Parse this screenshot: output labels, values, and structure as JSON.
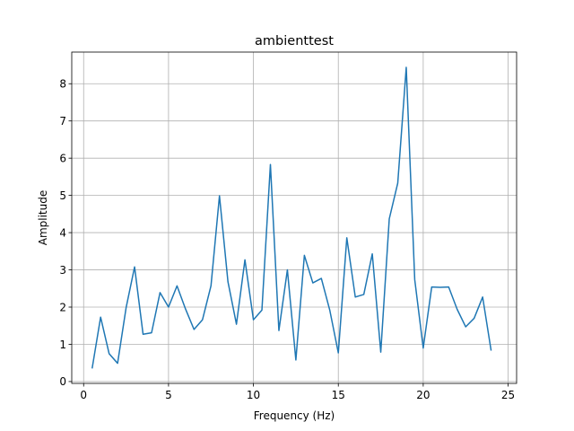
{
  "chart_data": {
    "type": "line",
    "title": "ambienttest",
    "xlabel": "Frequency (Hz)",
    "ylabel": "Amplitude",
    "xlim": [
      -0.7,
      25.5
    ],
    "ylim": [
      -0.05,
      8.85
    ],
    "xticks": [
      0,
      5,
      10,
      15,
      20,
      25
    ],
    "yticks": [
      0,
      1,
      2,
      3,
      4,
      5,
      6,
      7,
      8
    ],
    "grid": true,
    "series": [
      {
        "color": "#1f77b4",
        "x": [
          0.5,
          1.0,
          1.5,
          2.0,
          2.5,
          3.0,
          3.5,
          4.0,
          4.5,
          5.0,
          5.5,
          6.0,
          6.5,
          7.0,
          7.5,
          8.0,
          8.5,
          9.0,
          9.5,
          10.0,
          10.5,
          11.0,
          11.5,
          12.0,
          12.5,
          13.0,
          13.5,
          14.0,
          14.5,
          15.0,
          15.5,
          16.0,
          16.5,
          17.0,
          17.5,
          18.0,
          18.5,
          19.0,
          19.5,
          20.0,
          20.5,
          21.0,
          21.5,
          22.0,
          22.5,
          23.0,
          23.5,
          24.0
        ],
        "y": [
          0.35,
          1.73,
          0.75,
          0.49,
          1.98,
          3.08,
          1.27,
          1.31,
          2.39,
          2.0,
          2.57,
          1.95,
          1.4,
          1.66,
          2.57,
          4.99,
          2.68,
          1.54,
          3.27,
          1.66,
          1.92,
          5.83,
          1.37,
          3.0,
          0.58,
          3.39,
          2.65,
          2.77,
          1.91,
          0.77,
          3.86,
          2.27,
          2.34,
          3.43,
          0.79,
          4.37,
          5.33,
          8.44,
          2.74,
          0.9,
          2.54,
          2.53,
          2.54,
          1.94,
          1.47,
          1.7,
          2.27,
          0.83
        ]
      }
    ]
  }
}
